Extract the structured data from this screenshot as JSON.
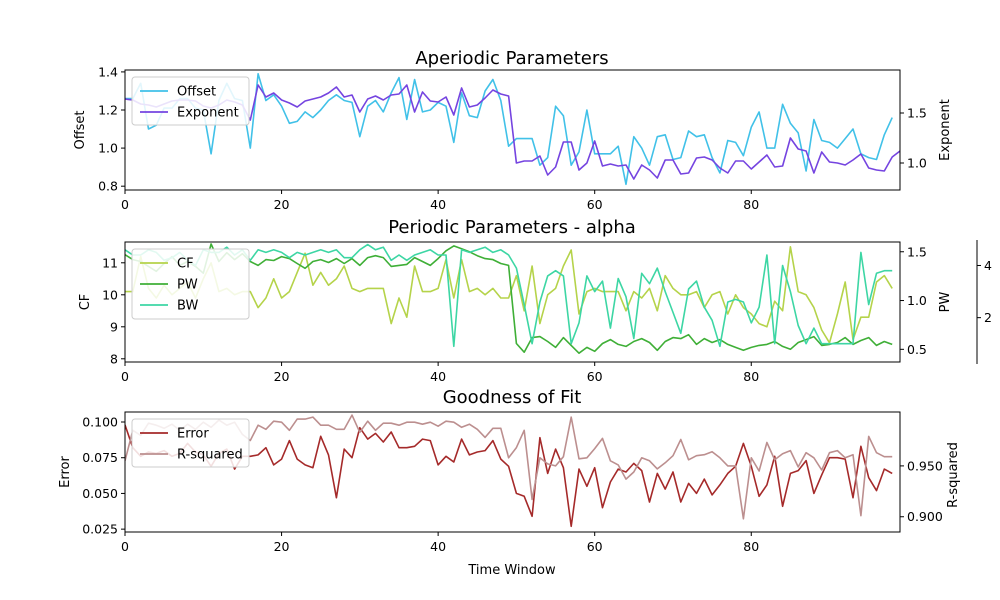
{
  "chart_data": [
    {
      "type": "line",
      "title": "Aperiodic Parameters",
      "xlabel": "",
      "xlim": [
        0,
        99
      ],
      "x_ticks": [
        0,
        20,
        40,
        60,
        80
      ],
      "ylabel": "Offset",
      "ylim": [
        0.78,
        1.41
      ],
      "y_ticks": [
        0.8,
        1.0,
        1.2,
        1.4
      ],
      "y2label": "Exponent",
      "y2lim": [
        0.73,
        1.93
      ],
      "y2_ticks": [
        1.0,
        1.5
      ],
      "legend": "upper-left",
      "series": [
        {
          "name": "Offset",
          "axis": "left",
          "color": "#41c1e8",
          "values": [
            1.26,
            1.26,
            1.34,
            1.1,
            1.12,
            1.21,
            1.21,
            1.26,
            1.26,
            1.21,
            1.2,
            0.97,
            1.25,
            1.34,
            1.26,
            1.25,
            1.0,
            1.39,
            1.25,
            1.28,
            1.22,
            1.13,
            1.14,
            1.19,
            1.16,
            1.2,
            1.25,
            1.28,
            1.25,
            1.24,
            1.06,
            1.22,
            1.25,
            1.19,
            1.29,
            1.37,
            1.15,
            1.36,
            1.19,
            1.2,
            1.24,
            1.22,
            1.03,
            1.29,
            1.17,
            1.16,
            1.3,
            1.36,
            1.25,
            1.01,
            1.05,
            1.05,
            1.05,
            0.91,
            0.95,
            1.22,
            1.17,
            0.91,
            0.98,
            1.2,
            0.97,
            0.97,
            0.97,
            1.01,
            0.81,
            1.06,
            1.0,
            0.91,
            1.06,
            1.07,
            0.94,
            0.95,
            1.09,
            1.06,
            1.07,
            0.95,
            0.87,
            1.04,
            1.03,
            0.96,
            1.11,
            1.19,
            1.0,
            1.0,
            1.23,
            1.13,
            1.08,
            0.88,
            1.15,
            1.04,
            1.03,
            1.0,
            1.05,
            1.1,
            0.97,
            0.95,
            0.94,
            1.07,
            1.16
          ]
        },
        {
          "name": "Exponent",
          "axis": "right",
          "color": "#7544e0",
          "values": [
            1.64,
            1.63,
            1.59,
            1.58,
            1.56,
            1.59,
            1.62,
            1.63,
            1.63,
            1.62,
            1.57,
            1.55,
            1.58,
            1.63,
            1.61,
            1.58,
            1.43,
            1.78,
            1.66,
            1.7,
            1.63,
            1.6,
            1.56,
            1.62,
            1.64,
            1.66,
            1.7,
            1.76,
            1.66,
            1.68,
            1.51,
            1.64,
            1.67,
            1.63,
            1.68,
            1.69,
            1.78,
            1.51,
            1.71,
            1.62,
            1.61,
            1.66,
            1.48,
            1.75,
            1.56,
            1.58,
            1.65,
            1.73,
            1.69,
            1.67,
            1.0,
            1.02,
            1.02,
            1.07,
            0.88,
            0.96,
            1.21,
            1.21,
            0.93,
            1.0,
            1.22,
            0.97,
            0.99,
            0.97,
            0.98,
            0.84,
            0.98,
            0.93,
            0.85,
            1.03,
            1.03,
            0.89,
            0.9,
            1.05,
            1.06,
            1.03,
            0.95,
            0.9,
            1.02,
            1.02,
            0.94,
            1.01,
            1.08,
            0.96,
            0.97,
            1.25,
            1.14,
            1.12,
            0.9,
            1.11,
            1.01,
            1.0,
            0.98,
            1.03,
            1.09,
            0.95,
            0.93,
            0.92,
            1.06,
            1.12
          ]
        }
      ]
    },
    {
      "type": "line",
      "title": "Periodic Parameters - alpha",
      "xlabel": "",
      "xlim": [
        0,
        99
      ],
      "x_ticks": [
        0,
        20,
        40,
        60,
        80
      ],
      "ylabel": "CF",
      "ylim": [
        7.9,
        11.65
      ],
      "y_ticks": [
        8,
        9,
        10,
        11
      ],
      "y2label": "PW",
      "y2lim": [
        0.37,
        1.6
      ],
      "y2_ticks": [
        0.5,
        1.0,
        1.5
      ],
      "y3lim": [
        0.3,
        4.9
      ],
      "y3_ticks": [
        2,
        4
      ],
      "legend": "upper-left",
      "series": [
        {
          "name": "CF",
          "axis": "left",
          "color": "#b5d34a",
          "values": [
            10.1,
            10.1,
            11.2,
            10.2,
            9.9,
            10.3,
            10.0,
            10.2,
            10.4,
            9.9,
            10.5,
            11.0,
            10.1,
            10.2,
            10.0,
            10.1,
            10.1,
            9.6,
            9.9,
            10.5,
            9.9,
            10.1,
            10.7,
            11.3,
            10.3,
            10.7,
            10.3,
            10.5,
            10.9,
            10.2,
            10.1,
            10.2,
            10.2,
            10.2,
            9.1,
            9.9,
            9.3,
            10.9,
            10.1,
            10.1,
            10.2,
            11.1,
            9.9,
            11.1,
            10.1,
            10.2,
            10.0,
            10.2,
            9.9,
            9.9,
            10.6,
            9.5,
            10.9,
            9.1,
            10.0,
            10.2,
            10.9,
            11.4,
            9.4,
            10.1,
            10.2,
            10.1,
            10.1,
            10.1,
            9.5,
            10.1,
            9.9,
            10.2,
            9.5,
            10.6,
            10.2,
            10.0,
            10.0,
            10.1,
            9.6,
            10.0,
            10.1,
            9.4,
            10.0,
            9.6,
            9.4,
            9.1,
            9.0,
            9.8,
            9.5,
            11.5,
            10.1,
            10.0,
            9.6,
            8.9,
            8.5,
            9.4,
            10.4,
            8.6,
            9.3,
            9.3,
            10.4,
            10.6,
            10.2
          ]
        },
        {
          "name": "PW",
          "axis": "right",
          "color": "#3faf37",
          "values": [
            1.47,
            1.42,
            1.4,
            1.35,
            1.3,
            1.38,
            1.45,
            1.36,
            1.4,
            1.35,
            1.28,
            1.58,
            1.4,
            1.49,
            1.42,
            1.48,
            1.4,
            1.36,
            1.42,
            1.41,
            1.45,
            1.43,
            1.38,
            1.33,
            1.4,
            1.42,
            1.39,
            1.43,
            1.38,
            1.43,
            1.36,
            1.44,
            1.46,
            1.44,
            1.35,
            1.36,
            1.37,
            1.44,
            1.4,
            1.36,
            1.43,
            1.51,
            1.56,
            1.53,
            1.5,
            1.46,
            1.43,
            1.42,
            1.38,
            1.36,
            0.56,
            0.47,
            0.62,
            0.63,
            0.58,
            0.52,
            0.62,
            0.54,
            0.46,
            0.52,
            0.48,
            0.56,
            0.6,
            0.55,
            0.53,
            0.58,
            0.61,
            0.57,
            0.49,
            0.58,
            0.62,
            0.61,
            0.65,
            0.55,
            0.61,
            0.57,
            0.6,
            0.55,
            0.52,
            0.49,
            0.52,
            0.54,
            0.55,
            0.58,
            0.53,
            0.5,
            0.57,
            0.6,
            0.63,
            0.54,
            0.55,
            0.57,
            0.62,
            0.55,
            0.59,
            0.62,
            0.54,
            0.58,
            0.55
          ]
        },
        {
          "name": "BW",
          "axis": "third",
          "color": "#3dd6a4",
          "values": [
            4.6,
            4.4,
            4.4,
            4.6,
            4.5,
            4.2,
            4.3,
            4.5,
            4.2,
            4.0,
            4.6,
            4.5,
            4.5,
            4.7,
            4.4,
            4.6,
            4.2,
            4.6,
            4.5,
            4.6,
            4.5,
            4.3,
            4.5,
            4.4,
            4.5,
            4.6,
            4.5,
            4.6,
            4.3,
            4.3,
            4.6,
            4.8,
            4.6,
            4.7,
            4.2,
            4.4,
            4.2,
            4.4,
            4.5,
            4.6,
            4.4,
            4.4,
            0.9,
            4.6,
            4.5,
            4.6,
            4.7,
            4.5,
            4.6,
            4.4,
            3.9,
            2.5,
            1.0,
            2.6,
            3.6,
            3.8,
            3.6,
            1.0,
            1.8,
            3.6,
            3.0,
            3.4,
            1.6,
            3.5,
            2.8,
            1.2,
            3.7,
            3.3,
            3.9,
            3.0,
            2.2,
            1.4,
            3.1,
            3.4,
            2.4,
            1.9,
            0.9,
            2.6,
            2.7,
            2.6,
            1.8,
            2.4,
            4.4,
            1.0,
            4.0,
            3.0,
            1.7,
            1.0,
            1.6,
            1.0,
            1.0,
            1.0,
            1.0,
            1.0,
            4.5,
            2.5,
            3.7,
            3.8,
            3.8
          ]
        }
      ]
    },
    {
      "type": "line",
      "title": "Goodness of Fit",
      "xlabel": "Time Window",
      "xlim": [
        0,
        99
      ],
      "x_ticks": [
        0,
        20,
        40,
        60,
        80
      ],
      "ylabel": "Error",
      "ylim": [
        0.023,
        0.107
      ],
      "y_ticks": [
        0.025,
        0.05,
        0.075,
        0.1
      ],
      "y2label": "R-squared",
      "y2lim": [
        0.885,
        1.003
      ],
      "y2_ticks": [
        0.9,
        0.95
      ],
      "legend": "upper-left",
      "series": [
        {
          "name": "Error",
          "axis": "left",
          "color": "#a52a2a",
          "values": [
            0.098,
            0.082,
            0.076,
            0.079,
            0.078,
            0.08,
            0.076,
            0.078,
            0.085,
            0.079,
            0.077,
            0.069,
            0.078,
            0.081,
            0.067,
            0.076,
            0.076,
            0.077,
            0.082,
            0.07,
            0.074,
            0.087,
            0.074,
            0.07,
            0.068,
            0.09,
            0.077,
            0.047,
            0.081,
            0.075,
            0.096,
            0.088,
            0.092,
            0.086,
            0.093,
            0.082,
            0.082,
            0.083,
            0.088,
            0.087,
            0.07,
            0.076,
            0.072,
            0.088,
            0.077,
            0.079,
            0.08,
            0.087,
            0.074,
            0.069,
            0.05,
            0.048,
            0.034,
            0.089,
            0.064,
            0.081,
            0.068,
            0.027,
            0.067,
            0.055,
            0.068,
            0.04,
            0.058,
            0.067,
            0.065,
            0.071,
            0.066,
            0.044,
            0.064,
            0.053,
            0.065,
            0.044,
            0.057,
            0.05,
            0.06,
            0.049,
            0.056,
            0.064,
            0.069,
            0.085,
            0.069,
            0.048,
            0.056,
            0.076,
            0.041,
            0.064,
            0.066,
            0.073,
            0.05,
            0.063,
            0.075,
            0.075,
            0.074,
            0.047,
            0.083,
            0.061,
            0.052,
            0.067,
            0.064
          ]
        },
        {
          "name": "R-squared",
          "axis": "right",
          "color": "#bc8f8f",
          "values": [
            0.955,
            0.985,
            0.98,
            0.992,
            0.99,
            0.987,
            0.991,
            0.985,
            0.991,
            0.986,
            0.993,
            0.988,
            0.995,
            0.99,
            0.993,
            0.981,
            0.975,
            0.99,
            0.986,
            0.994,
            0.993,
            0.985,
            0.996,
            0.996,
            0.998,
            0.99,
            0.99,
            0.986,
            0.986,
            1.0,
            0.983,
            0.994,
            0.985,
            0.992,
            0.992,
            0.99,
            0.993,
            0.993,
            0.991,
            0.993,
            0.989,
            0.994,
            0.993,
            0.988,
            0.991,
            0.986,
            0.978,
            0.987,
            0.987,
            0.958,
            0.968,
            0.985,
            0.917,
            0.958,
            0.952,
            0.95,
            0.959,
            0.998,
            0.957,
            0.958,
            0.967,
            0.977,
            0.955,
            0.951,
            0.937,
            0.944,
            0.958,
            0.955,
            0.947,
            0.953,
            0.96,
            0.976,
            0.956,
            0.96,
            0.961,
            0.964,
            0.958,
            0.95,
            0.95,
            0.898,
            0.958,
            0.945,
            0.973,
            0.956,
            0.962,
            0.965,
            0.949,
            0.963,
            0.958,
            0.946,
            0.963,
            0.965,
            0.958,
            0.961,
            0.901,
            0.979,
            0.963,
            0.959,
            0.959
          ]
        }
      ]
    }
  ]
}
